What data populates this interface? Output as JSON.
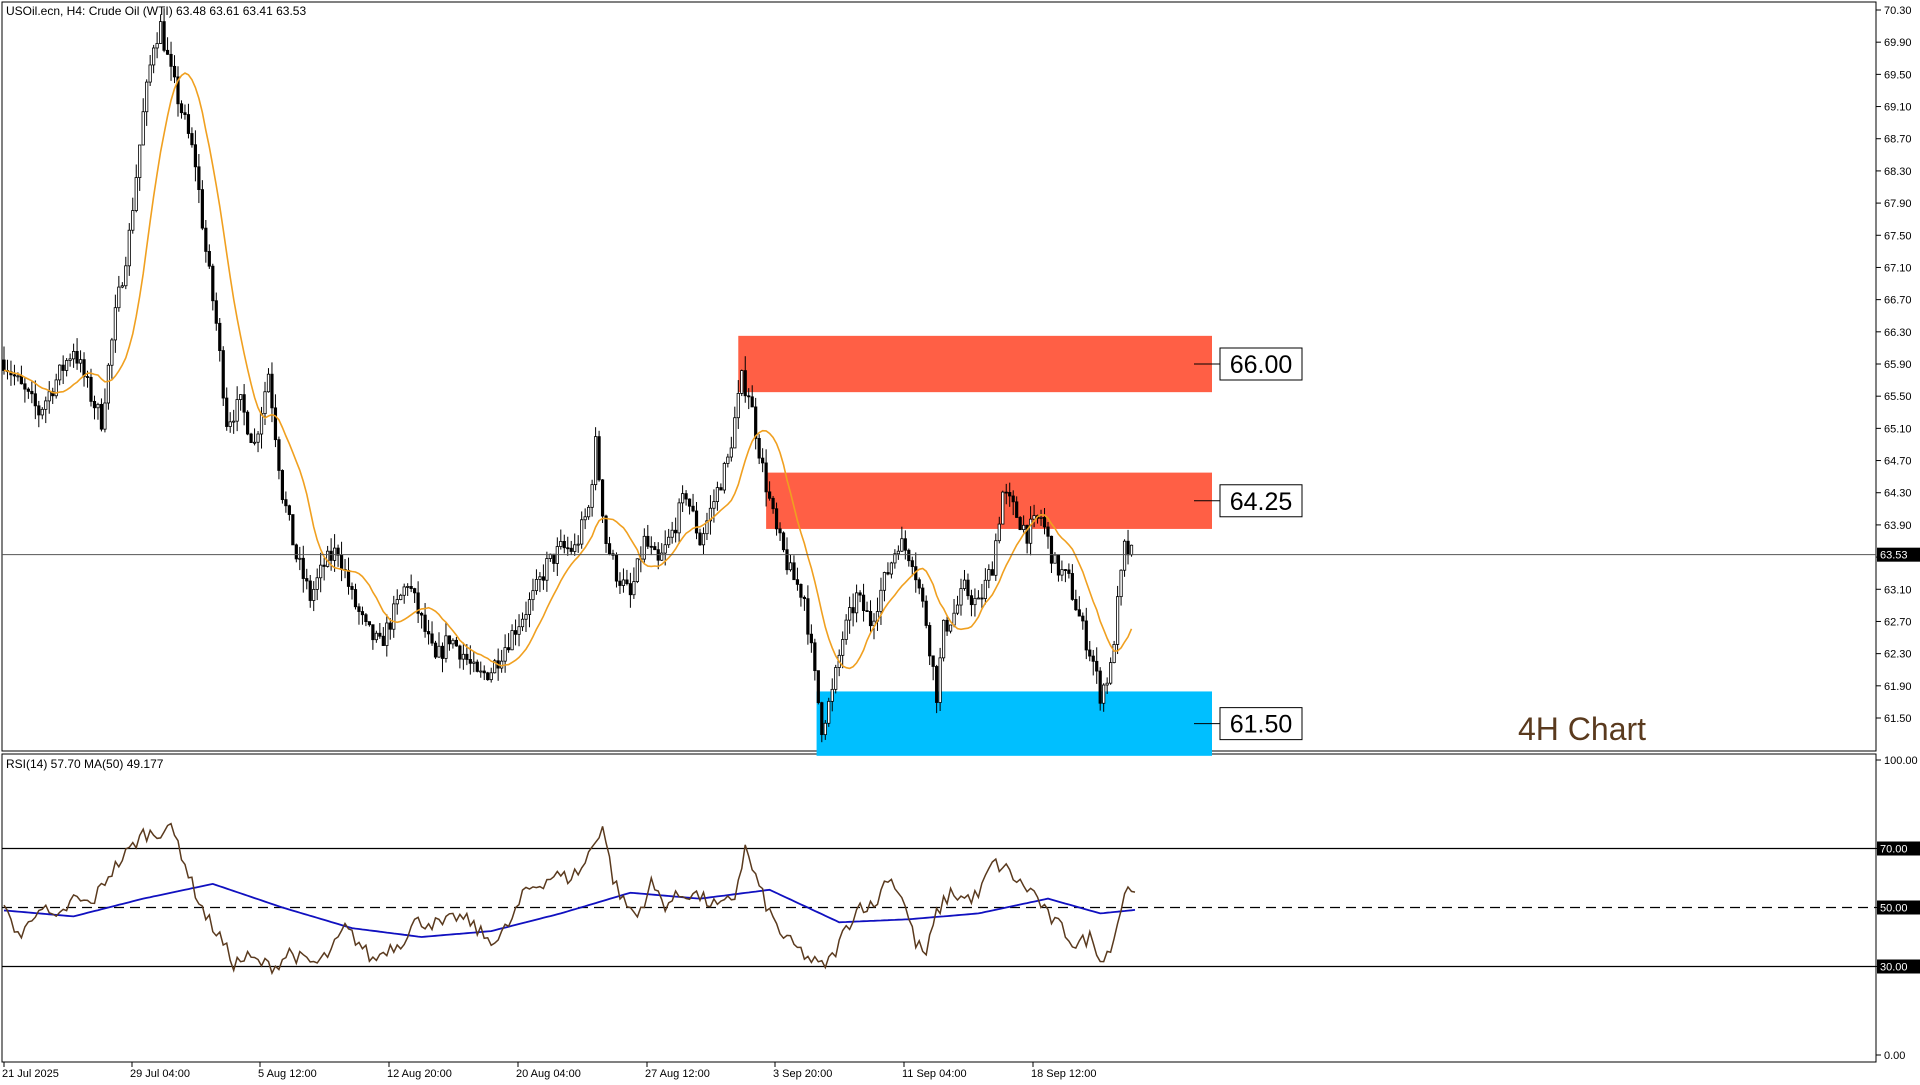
{
  "header": {
    "symbol_line": "USOil.ecn, H4:  Crude Oil (WTI)  63.48 63.61 63.41 63.53",
    "rsi_line": "RSI(14) 57.70 MA(50) 49.177"
  },
  "annotation": {
    "label": "4H Chart",
    "color": "#5a3a1e"
  },
  "zones": [
    {
      "name": "resistance-zone-upper",
      "label": "66.00",
      "low": 65.55,
      "high": 66.25,
      "color": "#ff5f45"
    },
    {
      "name": "resistance-zone-lower",
      "label": "64.25",
      "low": 63.85,
      "high": 64.55,
      "color": "#ff5f45"
    },
    {
      "name": "support-zone",
      "label": "61.50",
      "low": 61.03,
      "high": 61.83,
      "color": "#00bfff"
    }
  ],
  "price_axis": {
    "ticks": [
      "70.30",
      "69.90",
      "69.50",
      "69.10",
      "68.70",
      "68.30",
      "67.90",
      "67.50",
      "67.10",
      "66.70",
      "66.30",
      "65.90",
      "65.50",
      "65.10",
      "64.70",
      "64.30",
      "63.90",
      "63.50",
      "63.10",
      "62.70",
      "62.30",
      "61.90",
      "61.50"
    ],
    "current_label": "63.53"
  },
  "rsi_axis": {
    "ticks": [
      "100.00",
      "70.00",
      "50.00",
      "30.00",
      "0.00"
    ]
  },
  "time_axis": {
    "labels": [
      "21 Jul 2025",
      "29 Jul 04:00",
      "5 Aug 12:00",
      "12 Aug 20:00",
      "20 Aug 04:00",
      "27 Aug 12:00",
      "3 Sep 20:00",
      "11 Sep 04:00",
      "18 Sep 12:00"
    ]
  },
  "chart_data": [
    {
      "type": "candlestick",
      "title": "USOil.ecn, H4: Crude Oil (WTI)",
      "ylim": [
        61.2,
        70.35
      ],
      "current_price": 63.53,
      "ma_color": "#f0a020",
      "price_anchors": [
        [
          0,
          65.95
        ],
        [
          5,
          65.6
        ],
        [
          10,
          65.3
        ],
        [
          15,
          65.7
        ],
        [
          20,
          66.1
        ],
        [
          25,
          65.5
        ],
        [
          28,
          65.2
        ],
        [
          32,
          66.5
        ],
        [
          36,
          67.5
        ],
        [
          40,
          69.0
        ],
        [
          43,
          69.9
        ],
        [
          45,
          70.1
        ],
        [
          48,
          69.5
        ],
        [
          52,
          68.9
        ],
        [
          55,
          68.4
        ],
        [
          58,
          67.3
        ],
        [
          61,
          66.4
        ],
        [
          64,
          65.2
        ],
        [
          68,
          65.4
        ],
        [
          72,
          64.9
        ],
        [
          76,
          65.8
        ],
        [
          80,
          64.3
        ],
        [
          84,
          63.5
        ],
        [
          88,
          63.0
        ],
        [
          92,
          63.4
        ],
        [
          96,
          63.6
        ],
        [
          100,
          63.0
        ],
        [
          104,
          62.6
        ],
        [
          108,
          62.4
        ],
        [
          112,
          62.8
        ],
        [
          116,
          63.2
        ],
        [
          120,
          62.7
        ],
        [
          124,
          62.2
        ],
        [
          128,
          62.5
        ],
        [
          132,
          62.3
        ],
        [
          136,
          62.0
        ],
        [
          140,
          62.1
        ],
        [
          144,
          62.4
        ],
        [
          148,
          62.7
        ],
        [
          152,
          63.0
        ],
        [
          156,
          63.4
        ],
        [
          160,
          63.6
        ],
        [
          164,
          63.6
        ],
        [
          168,
          64.1
        ],
        [
          170,
          64.9
        ],
        [
          173,
          63.7
        ],
        [
          176,
          63.3
        ],
        [
          180,
          63.0
        ],
        [
          184,
          63.7
        ],
        [
          188,
          63.4
        ],
        [
          192,
          63.8
        ],
        [
          196,
          64.3
        ],
        [
          200,
          63.7
        ],
        [
          204,
          64.2
        ],
        [
          208,
          64.7
        ],
        [
          212,
          65.7
        ],
        [
          214,
          65.55
        ],
        [
          218,
          64.6
        ],
        [
          222,
          63.8
        ],
        [
          226,
          63.3
        ],
        [
          230,
          63.0
        ],
        [
          233,
          62.0
        ],
        [
          235,
          61.4
        ],
        [
          238,
          61.8
        ],
        [
          241,
          62.5
        ],
        [
          245,
          63.0
        ],
        [
          249,
          62.7
        ],
        [
          253,
          63.2
        ],
        [
          257,
          63.7
        ],
        [
          261,
          63.5
        ],
        [
          265,
          62.7
        ],
        [
          268,
          61.8
        ],
        [
          270,
          62.6
        ],
        [
          273,
          62.8
        ],
        [
          276,
          63.1
        ],
        [
          280,
          62.9
        ],
        [
          284,
          63.4
        ],
        [
          287,
          64.3
        ],
        [
          290,
          64.1
        ],
        [
          294,
          63.8
        ],
        [
          298,
          64.0
        ],
        [
          302,
          63.4
        ],
        [
          306,
          63.2
        ],
        [
          310,
          62.6
        ],
        [
          313,
          62.2
        ],
        [
          315,
          61.8
        ],
        [
          318,
          62.1
        ],
        [
          320,
          62.9
        ],
        [
          322,
          63.6
        ],
        [
          324,
          63.53
        ]
      ],
      "volatility": 0.13,
      "candle_count": 325
    },
    {
      "type": "line",
      "title": "RSI(14) 57.70 MA(50) 49.177",
      "ylim": [
        0,
        100
      ],
      "levels": [
        30,
        50,
        70
      ],
      "rsi_color": "#5a3a1e",
      "ma_color": "#1010c0",
      "rsi_anchors": [
        [
          0,
          49
        ],
        [
          5,
          40
        ],
        [
          10,
          51
        ],
        [
          15,
          45
        ],
        [
          20,
          53
        ],
        [
          25,
          51
        ],
        [
          30,
          61
        ],
        [
          35,
          68
        ],
        [
          40,
          75
        ],
        [
          44,
          75
        ],
        [
          47,
          78
        ],
        [
          50,
          72
        ],
        [
          54,
          58
        ],
        [
          58,
          47
        ],
        [
          62,
          40
        ],
        [
          66,
          31
        ],
        [
          70,
          33
        ],
        [
          74,
          31
        ],
        [
          78,
          30
        ],
        [
          82,
          35
        ],
        [
          86,
          32
        ],
        [
          90,
          31
        ],
        [
          94,
          35
        ],
        [
          98,
          43
        ],
        [
          102,
          38
        ],
        [
          106,
          32
        ],
        [
          110,
          36
        ],
        [
          114,
          38
        ],
        [
          118,
          45
        ],
        [
          122,
          45
        ],
        [
          126,
          44
        ],
        [
          130,
          47
        ],
        [
          134,
          45
        ],
        [
          138,
          40
        ],
        [
          142,
          39
        ],
        [
          146,
          46
        ],
        [
          150,
          56
        ],
        [
          154,
          58
        ],
        [
          158,
          61
        ],
        [
          162,
          60
        ],
        [
          166,
          63
        ],
        [
          170,
          73
        ],
        [
          172,
          78
        ],
        [
          175,
          60
        ],
        [
          178,
          52
        ],
        [
          182,
          47
        ],
        [
          186,
          58
        ],
        [
          190,
          51
        ],
        [
          194,
          54
        ],
        [
          198,
          55
        ],
        [
          202,
          52
        ],
        [
          206,
          50
        ],
        [
          210,
          54
        ],
        [
          213,
          70
        ],
        [
          216,
          60
        ],
        [
          220,
          48
        ],
        [
          224,
          40
        ],
        [
          228,
          36
        ],
        [
          232,
          32
        ],
        [
          235,
          30
        ],
        [
          238,
          33
        ],
        [
          242,
          43
        ],
        [
          246,
          51
        ],
        [
          250,
          50
        ],
        [
          254,
          61
        ],
        [
          258,
          54
        ],
        [
          262,
          38
        ],
        [
          265,
          34
        ],
        [
          268,
          48
        ],
        [
          272,
          55
        ],
        [
          276,
          53
        ],
        [
          280,
          54
        ],
        [
          284,
          65
        ],
        [
          288,
          63
        ],
        [
          292,
          58
        ],
        [
          296,
          55
        ],
        [
          300,
          47
        ],
        [
          304,
          43
        ],
        [
          308,
          37
        ],
        [
          312,
          40
        ],
        [
          316,
          32
        ],
        [
          319,
          40
        ],
        [
          322,
          55
        ],
        [
          325,
          57.7
        ]
      ],
      "ma_anchors": [
        [
          0,
          49
        ],
        [
          20,
          47
        ],
        [
          40,
          53
        ],
        [
          60,
          58
        ],
        [
          80,
          50
        ],
        [
          100,
          43
        ],
        [
          120,
          40
        ],
        [
          140,
          42
        ],
        [
          160,
          48
        ],
        [
          180,
          55
        ],
        [
          200,
          53
        ],
        [
          220,
          56
        ],
        [
          240,
          45
        ],
        [
          260,
          46
        ],
        [
          280,
          48
        ],
        [
          300,
          53
        ],
        [
          315,
          48
        ],
        [
          325,
          49.177
        ]
      ]
    }
  ]
}
